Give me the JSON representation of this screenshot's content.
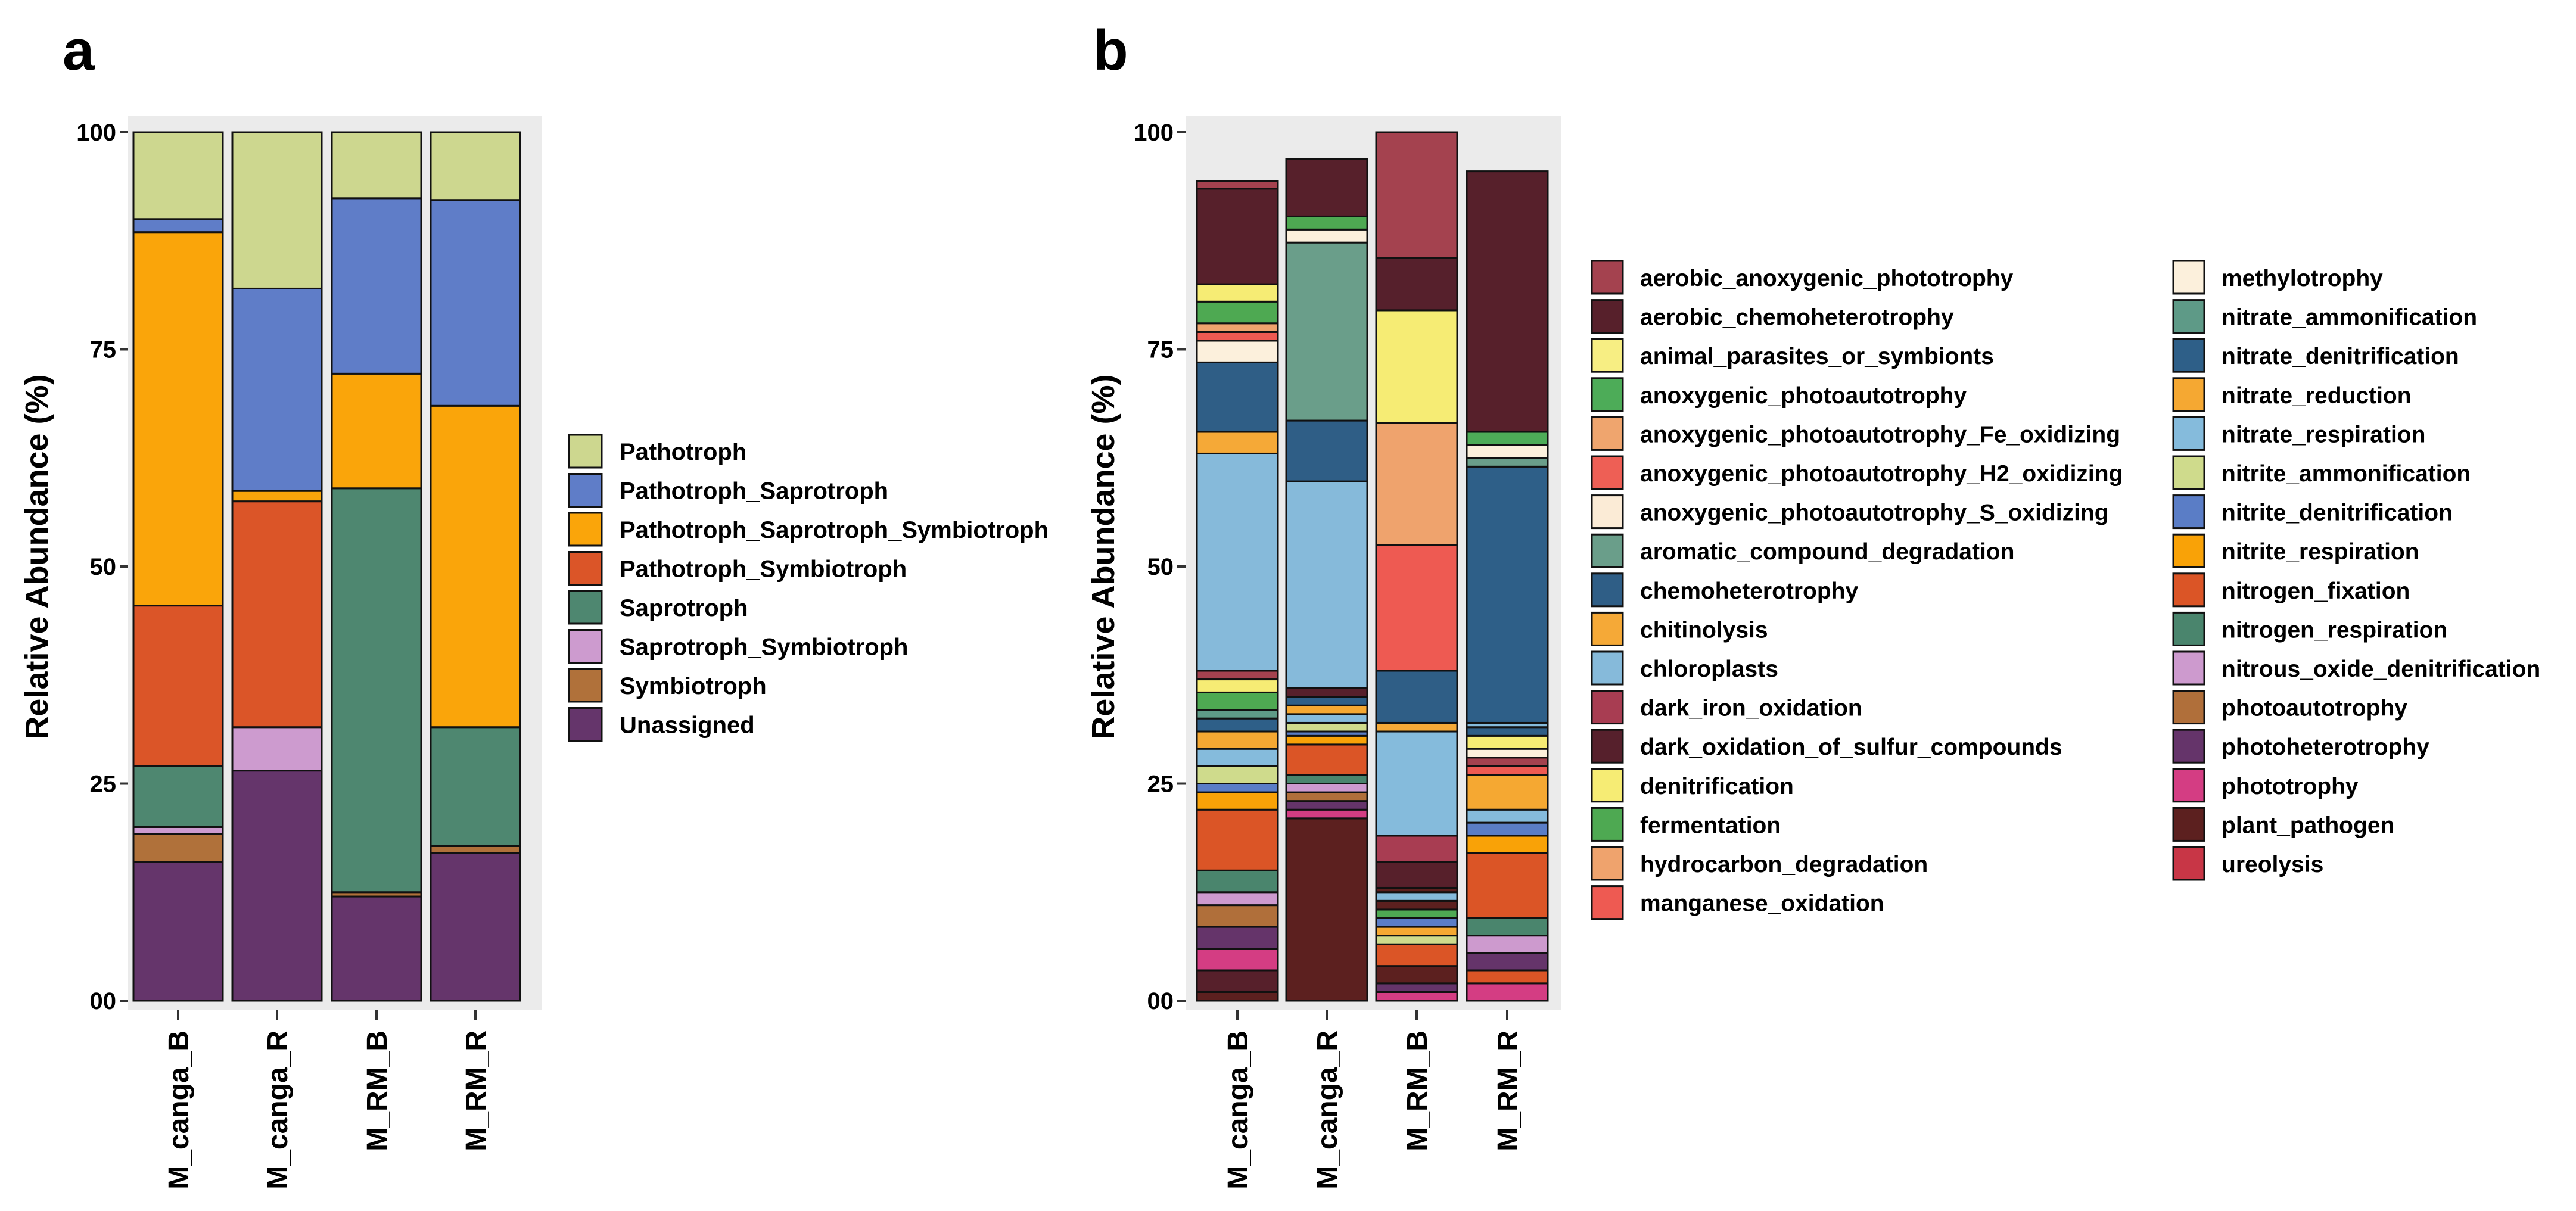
{
  "chart_data": [
    {
      "panel": "a",
      "type": "bar",
      "stacked": true,
      "ylabel": "Relative Abundance (%)",
      "ylim": [
        0,
        100
      ],
      "yticks": [
        "00",
        "25",
        "50",
        "75",
        "100"
      ],
      "categories": [
        "M_canga_B",
        "M_canga_R",
        "M_RM_B",
        "M_RM_R"
      ],
      "legend_position": "right",
      "series": [
        {
          "name": "Unassigned",
          "color": "#65356B",
          "values": [
            16.0,
            26.5,
            12.0,
            17.0
          ]
        },
        {
          "name": "Symbiotroph",
          "color": "#B0713A",
          "values": [
            3.2,
            0.0,
            0.5,
            0.8
          ]
        },
        {
          "name": "Saprotroph_Symbiotroph",
          "color": "#CD9BCF",
          "values": [
            0.8,
            5.0,
            0.0,
            0.0
          ]
        },
        {
          "name": "Saprotroph",
          "color": "#4E8770",
          "values": [
            7.0,
            0.0,
            46.5,
            13.7
          ]
        },
        {
          "name": "Pathotroph_Symbiotroph",
          "color": "#DB5528",
          "values": [
            18.5,
            26.0,
            0.0,
            0.0
          ]
        },
        {
          "name": "Pathotroph_Saprotroph_Symbiotroph",
          "color": "#FAA50A",
          "values": [
            43.0,
            1.2,
            13.2,
            37.0
          ]
        },
        {
          "name": "Pathotroph_Saprotroph",
          "color": "#5F7DC8",
          "values": [
            1.5,
            23.3,
            20.2,
            23.7
          ]
        },
        {
          "name": "Pathotroph",
          "color": "#CDD78F",
          "values": [
            10.0,
            18.0,
            7.6,
            7.8
          ]
        }
      ],
      "legend_order": [
        "Pathotroph",
        "Pathotroph_Saprotroph",
        "Pathotroph_Saprotroph_Symbiotroph",
        "Pathotroph_Symbiotroph",
        "Saprotroph",
        "Saprotroph_Symbiotroph",
        "Symbiotroph",
        "Unassigned"
      ]
    },
    {
      "panel": "b",
      "type": "bar",
      "stacked": true,
      "ylabel": "Relative Abundance (%)",
      "ylim": [
        0,
        100
      ],
      "yticks": [
        "00",
        "25",
        "50",
        "75",
        "100"
      ],
      "categories": [
        "M_canga_B",
        "M_canga_R",
        "M_RM_B",
        "M_RM_R"
      ],
      "legend_position": "right",
      "legend": [
        {
          "name": "aerobic_anoxygenic_phototrophy",
          "color": "#A4424F"
        },
        {
          "name": "aerobic_chemoheterotrophy",
          "color": "#57202B"
        },
        {
          "name": "animal_parasites_or_symbionts",
          "color": "#F7EE83"
        },
        {
          "name": "anoxygenic_photoautotrophy",
          "color": "#4DAC58"
        },
        {
          "name": "anoxygenic_photoautotrophy_Fe_oxidizing",
          "color": "#EFA56E"
        },
        {
          "name": "anoxygenic_photoautotrophy_H2_oxidizing",
          "color": "#EE5F55"
        },
        {
          "name": "anoxygenic_photoautotrophy_S_oxidizing",
          "color": "#FBEBD6"
        },
        {
          "name": "aromatic_compound_degradation",
          "color": "#6A9E8A"
        },
        {
          "name": "chemoheterotrophy",
          "color": "#2F5E86"
        },
        {
          "name": "chitinolysis",
          "color": "#F5A937"
        },
        {
          "name": "chloroplasts",
          "color": "#86BADA"
        },
        {
          "name": "dark_iron_oxidation",
          "color": "#A83D52"
        },
        {
          "name": "dark_oxidation_of_sulfur_compounds",
          "color": "#56202C"
        },
        {
          "name": "denitrification",
          "color": "#F6EC74"
        },
        {
          "name": "fermentation",
          "color": "#4EA952"
        },
        {
          "name": "hydrocarbon_degradation",
          "color": "#EFA36D"
        },
        {
          "name": "manganese_oxidation",
          "color": "#EE5A52"
        },
        {
          "name": "methylotrophy",
          "color": "#FCF0DC"
        },
        {
          "name": "nitrate_ammonification",
          "color": "#5E9A87"
        },
        {
          "name": "nitrate_denitrification",
          "color": "#2E5F88"
        },
        {
          "name": "nitrate_reduction",
          "color": "#F5A832"
        },
        {
          "name": "nitrate_respiration",
          "color": "#85BBDC"
        },
        {
          "name": "nitrite_ammonification",
          "color": "#CFDB8C"
        },
        {
          "name": "nitrite_denitrification",
          "color": "#5A7DC6"
        },
        {
          "name": "nitrite_respiration",
          "color": "#F9A207"
        },
        {
          "name": "nitrogen_fixation",
          "color": "#DB5526"
        },
        {
          "name": "nitrogen_respiration",
          "color": "#4A856D"
        },
        {
          "name": "nitrous_oxide_denitrification",
          "color": "#CD9ACE"
        },
        {
          "name": "photoautotrophy",
          "color": "#B06F3A"
        },
        {
          "name": "photoheterotrophy",
          "color": "#65346A"
        },
        {
          "name": "phototrophy",
          "color": "#D43D83"
        },
        {
          "name": "plant_pathogen",
          "color": "#5C201F"
        },
        {
          "name": "ureolysis",
          "color": "#C83646"
        }
      ],
      "stacks": [
        [
          {
            "name": "plant_pathogen",
            "value": 1.0
          },
          {
            "name": "aerobic_chemoheterotrophy",
            "value": 2.5
          },
          {
            "name": "phototrophy",
            "value": 2.5
          },
          {
            "name": "photoheterotrophy",
            "value": 2.5
          },
          {
            "name": "photoautotrophy",
            "value": 2.5
          },
          {
            "name": "nitrous_oxide_denitrification",
            "value": 1.5
          },
          {
            "name": "nitrogen_respiration",
            "value": 2.5
          },
          {
            "name": "nitrogen_fixation",
            "value": 7.0
          },
          {
            "name": "nitrite_respiration",
            "value": 2.0
          },
          {
            "name": "nitrite_denitrification",
            "value": 1.0
          },
          {
            "name": "nitrite_ammonification",
            "value": 2.0
          },
          {
            "name": "nitrate_respiration",
            "value": 2.0
          },
          {
            "name": "nitrate_reduction",
            "value": 2.0
          },
          {
            "name": "nitrate_denitrification",
            "value": 1.5
          },
          {
            "name": "nitrate_ammonification",
            "value": 1.0
          },
          {
            "name": "fermentation",
            "value": 2.0
          },
          {
            "name": "denitrification",
            "value": 1.5
          },
          {
            "name": "aerobic_anoxygenic_phototrophy",
            "value": 1.0
          },
          {
            "name": "chloroplasts",
            "value": 25.0
          },
          {
            "name": "chitinolysis",
            "value": 2.5
          },
          {
            "name": "chemoheterotrophy",
            "value": 8.0
          },
          {
            "name": "methylotrophy",
            "value": 2.5
          },
          {
            "name": "manganese_oxidation",
            "value": 1.0
          },
          {
            "name": "hydrocarbon_degradation",
            "value": 1.0
          },
          {
            "name": "fermentation",
            "value": 2.5
          },
          {
            "name": "denitrification",
            "value": 2.0
          },
          {
            "name": "aerobic_chemoheterotrophy",
            "value": 11.0
          },
          {
            "name": "aerobic_anoxygenic_phototrophy",
            "value": 0.9
          }
        ],
        [
          {
            "name": "plant_pathogen",
            "value": 21.0
          },
          {
            "name": "phototrophy",
            "value": 1.0
          },
          {
            "name": "photoheterotrophy",
            "value": 1.0
          },
          {
            "name": "photoautotrophy",
            "value": 1.0
          },
          {
            "name": "nitrous_oxide_denitrification",
            "value": 1.0
          },
          {
            "name": "nitrogen_respiration",
            "value": 1.0
          },
          {
            "name": "nitrogen_fixation",
            "value": 3.5
          },
          {
            "name": "nitrite_respiration",
            "value": 1.0
          },
          {
            "name": "nitrite_denitrification",
            "value": 0.5
          },
          {
            "name": "nitrite_ammonification",
            "value": 1.0
          },
          {
            "name": "nitrate_respiration",
            "value": 1.0
          },
          {
            "name": "nitrate_reduction",
            "value": 1.0
          },
          {
            "name": "nitrate_denitrification",
            "value": 1.0
          },
          {
            "name": "aerobic_chemoheterotrophy",
            "value": 1.0
          },
          {
            "name": "chloroplasts",
            "value": 23.8
          },
          {
            "name": "chemoheterotrophy",
            "value": 7.0
          },
          {
            "name": "aromatic_compound_degradation",
            "value": 20.5
          },
          {
            "name": "methylotrophy",
            "value": 1.5
          },
          {
            "name": "fermentation",
            "value": 1.5
          },
          {
            "name": "aerobic_chemoheterotrophy",
            "value": 6.6
          }
        ],
        [
          {
            "name": "phototrophy",
            "value": 1.0
          },
          {
            "name": "photoheterotrophy",
            "value": 1.0
          },
          {
            "name": "plant_pathogen",
            "value": 2.0
          },
          {
            "name": "nitrogen_fixation",
            "value": 2.5
          },
          {
            "name": "nitrite_ammonification",
            "value": 1.0
          },
          {
            "name": "nitrate_reduction",
            "value": 1.0
          },
          {
            "name": "nitrite_denitrification",
            "value": 1.0
          },
          {
            "name": "fermentation",
            "value": 1.0
          },
          {
            "name": "plant_pathogen",
            "value": 1.0
          },
          {
            "name": "nitrate_respiration",
            "value": 1.0
          },
          {
            "name": "plant_pathogen",
            "value": 0.5
          },
          {
            "name": "aerobic_chemoheterotrophy",
            "value": 3.0
          },
          {
            "name": "dark_iron_oxidation",
            "value": 3.0
          },
          {
            "name": "nitrate_respiration",
            "value": 12.0
          },
          {
            "name": "chitinolysis",
            "value": 1.0
          },
          {
            "name": "chemoheterotrophy",
            "value": 6.0
          },
          {
            "name": "manganese_oxidation",
            "value": 14.5
          },
          {
            "name": "hydrocarbon_degradation",
            "value": 14.0
          },
          {
            "name": "denitrification",
            "value": 13.0
          },
          {
            "name": "dark_oxidation_of_sulfur_compounds",
            "value": 6.0
          },
          {
            "name": "aerobic_anoxygenic_phototrophy",
            "value": 14.5
          }
        ],
        [
          {
            "name": "phototrophy",
            "value": 2.0
          },
          {
            "name": "nitrogen_fixation",
            "value": 1.5
          },
          {
            "name": "photoheterotrophy",
            "value": 2.0
          },
          {
            "name": "nitrous_oxide_denitrification",
            "value": 2.0
          },
          {
            "name": "nitrogen_respiration",
            "value": 2.0
          },
          {
            "name": "nitrogen_fixation",
            "value": 7.5
          },
          {
            "name": "nitrite_respiration",
            "value": 2.0
          },
          {
            "name": "nitrite_denitrification",
            "value": 1.5
          },
          {
            "name": "nitrate_respiration",
            "value": 1.5
          },
          {
            "name": "nitrate_reduction",
            "value": 4.0
          },
          {
            "name": "manganese_oxidation",
            "value": 1.0
          },
          {
            "name": "aerobic_anoxygenic_phototrophy",
            "value": 1.0
          },
          {
            "name": "methylotrophy",
            "value": 1.0
          },
          {
            "name": "denitrification",
            "value": 1.5
          },
          {
            "name": "chemoheterotrophy",
            "value": 1.0
          },
          {
            "name": "nitrate_respiration",
            "value": 0.5
          },
          {
            "name": "nitrate_denitrification",
            "value": 29.5
          },
          {
            "name": "aromatic_compound_degradation",
            "value": 1.0
          },
          {
            "name": "methylotrophy",
            "value": 1.5
          },
          {
            "name": "anoxygenic_photoautotrophy",
            "value": 1.5
          },
          {
            "name": "aerobic_chemoheterotrophy",
            "value": 30.0
          }
        ]
      ]
    }
  ]
}
